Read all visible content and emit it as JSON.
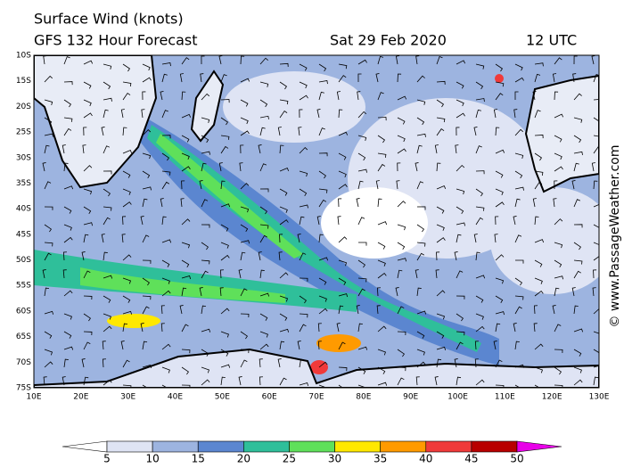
{
  "header": {
    "title": "Surface Wind (knots)",
    "subtitle": "GFS 132 Hour Forecast",
    "date": "Sat 29 Feb 2020",
    "time": "12 UTC"
  },
  "map": {
    "lat_labels": [
      "10S",
      "15S",
      "20S",
      "25S",
      "30S",
      "35S",
      "40S",
      "45S",
      "50S",
      "55S",
      "60S",
      "65S",
      "70S",
      "75S"
    ],
    "lon_labels": [
      "10E",
      "20E",
      "30E",
      "40E",
      "50E",
      "60E",
      "70E",
      "80E",
      "90E",
      "100E",
      "110E",
      "120E",
      "130E"
    ]
  },
  "colorbar": {
    "ticks": [
      5,
      10,
      15,
      20,
      25,
      30,
      35,
      40,
      45,
      50
    ],
    "colors": [
      "#ffffff",
      "#dfe4f4",
      "#9db4e0",
      "#5b86d0",
      "#2fbf9a",
      "#5fe05a",
      "#ffe800",
      "#ff9a00",
      "#f03a3a",
      "#b80000",
      "#e800e8"
    ]
  },
  "credit": "© www.PassageWeather.com"
}
